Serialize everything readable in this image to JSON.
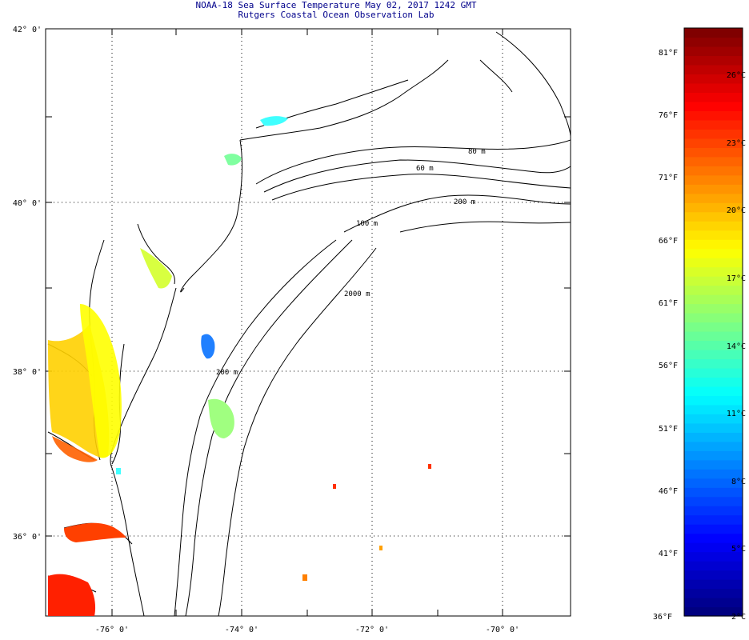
{
  "header": {
    "title": "NOAA-18 Sea Surface Temperature May 02, 2017 1242 GMT",
    "subtitle": "Rutgers Coastal Ocean Observation Lab"
  },
  "map": {
    "lat_labels": [
      "42° 0'",
      "40° 0'",
      "38° 0'",
      "36° 0'"
    ],
    "lon_labels": [
      "-76° 0'",
      "-74° 0'",
      "-72° 0'",
      "-70° 0'"
    ],
    "depth_labels": [
      "60 m",
      "80 m",
      "200 m",
      "100 m",
      "200 m",
      "2000 m"
    ],
    "grid": "dotted",
    "frame_color": "#000000"
  },
  "colorbar": {
    "fahrenheit_labels": [
      "81°F",
      "76°F",
      "71°F",
      "66°F",
      "61°F",
      "56°F",
      "51°F",
      "46°F",
      "41°F",
      "36°F"
    ],
    "celsius_labels": [
      "26°C",
      "23°C",
      "20°C",
      "17°C",
      "14°C",
      "11°C",
      "8°C",
      "5°C",
      "2°C"
    ],
    "colors": [
      "#000080",
      "#0000ff",
      "#0080ff",
      "#00ffff",
      "#80ff80",
      "#ffff00",
      "#ff8000",
      "#ff0000",
      "#800000"
    ]
  }
}
